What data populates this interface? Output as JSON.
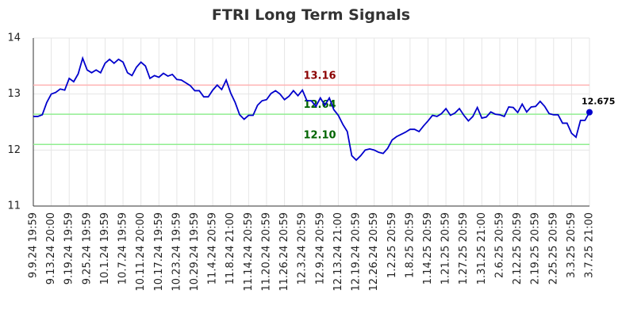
{
  "chart_data": {
    "type": "line",
    "title": "FTRI Long Term Signals",
    "categories": [
      "9.9.24 19:59",
      null,
      null,
      null,
      "9.13.24 20:00",
      null,
      null,
      null,
      "9.19.24 19:59",
      null,
      null,
      null,
      "9.25.24 19:59",
      null,
      null,
      null,
      "10.1.24 19:59",
      null,
      null,
      null,
      "10.7.24 19:59",
      null,
      null,
      null,
      "10.11.24 20:00",
      null,
      null,
      null,
      "10.17.24 19:59",
      null,
      null,
      null,
      "10.23.24 19:59",
      null,
      null,
      null,
      "10.29.24 19:59",
      null,
      null,
      null,
      "11.4.24 20:59",
      null,
      null,
      null,
      "11.8.24 21:00",
      null,
      null,
      null,
      "11.14.24 20:59",
      null,
      null,
      null,
      "11.20.24 20:59",
      null,
      null,
      null,
      "11.26.24 20:59",
      null,
      null,
      null,
      "12.3.24 20:59",
      null,
      null,
      null,
      "12.9.24 20:59",
      null,
      null,
      null,
      "12.13.24 21:00",
      null,
      null,
      null,
      "12.19.24 20:59",
      null,
      null,
      null,
      "12.26.24 20:59",
      null,
      null,
      null,
      "1.2.25 20:59",
      null,
      null,
      null,
      "1.8.25 20:59",
      null,
      null,
      null,
      "1.14.25 20:59",
      null,
      null,
      null,
      "1.21.25 20:59",
      null,
      null,
      null,
      "1.27.25 20:59",
      null,
      null,
      null,
      "1.31.25 21:00",
      null,
      null,
      null,
      "2.6.25 20:59",
      null,
      null,
      null,
      "2.12.25 20:59",
      null,
      null,
      null,
      "2.19.25 20:59",
      null,
      null,
      null,
      "2.25.25 20:59",
      null,
      null,
      null,
      "3.3.25 20:59",
      null,
      null,
      null,
      "3.7.25 21:00"
    ],
    "series": [
      {
        "name": "FTRI",
        "color": "#0000cc",
        "values": [
          12.6,
          12.6,
          12.63,
          12.85,
          13.0,
          13.03,
          13.09,
          13.07,
          13.28,
          13.22,
          13.36,
          13.64,
          13.43,
          13.38,
          13.43,
          13.38,
          13.55,
          13.62,
          13.55,
          13.62,
          13.57,
          13.38,
          13.33,
          13.48,
          13.57,
          13.5,
          13.28,
          13.33,
          13.3,
          13.37,
          13.32,
          13.35,
          13.26,
          13.25,
          13.2,
          13.15,
          13.06,
          13.06,
          12.95,
          12.95,
          13.07,
          13.16,
          13.08,
          13.25,
          13.02,
          12.85,
          12.63,
          12.55,
          12.62,
          12.62,
          12.8,
          12.88,
          12.9,
          13.01,
          13.06,
          13.0,
          12.9,
          12.96,
          13.06,
          12.97,
          13.07,
          12.88,
          12.88,
          12.78,
          12.93,
          12.8,
          12.93,
          12.72,
          12.62,
          12.46,
          12.33,
          11.9,
          11.82,
          11.9,
          12.0,
          12.02,
          12.0,
          11.96,
          11.94,
          12.03,
          12.18,
          12.24,
          12.28,
          12.32,
          12.37,
          12.37,
          12.33,
          12.43,
          12.52,
          12.62,
          12.6,
          12.65,
          12.74,
          12.62,
          12.66,
          12.74,
          12.62,
          12.52,
          12.6,
          12.76,
          12.57,
          12.59,
          12.68,
          12.64,
          12.63,
          12.6,
          12.77,
          12.76,
          12.67,
          12.82,
          12.68,
          12.77,
          12.78,
          12.87,
          12.78,
          12.65,
          12.63,
          12.63,
          12.48,
          12.48,
          12.3,
          12.23,
          12.53,
          12.53,
          12.675
        ]
      }
    ],
    "lines": [
      {
        "value": 13.16,
        "label": "13.16",
        "color": "#ffb3b3",
        "label_color": "#8b0000"
      },
      {
        "value": 12.64,
        "label": "12.64",
        "color": "#90ee90",
        "label_color": "#006400"
      },
      {
        "value": 12.1,
        "label": "12.10",
        "color": "#90ee90",
        "label_color": "#006400"
      }
    ],
    "ylim": [
      11,
      14
    ],
    "yticks": [
      11,
      12,
      13,
      14
    ],
    "grid": true
  }
}
